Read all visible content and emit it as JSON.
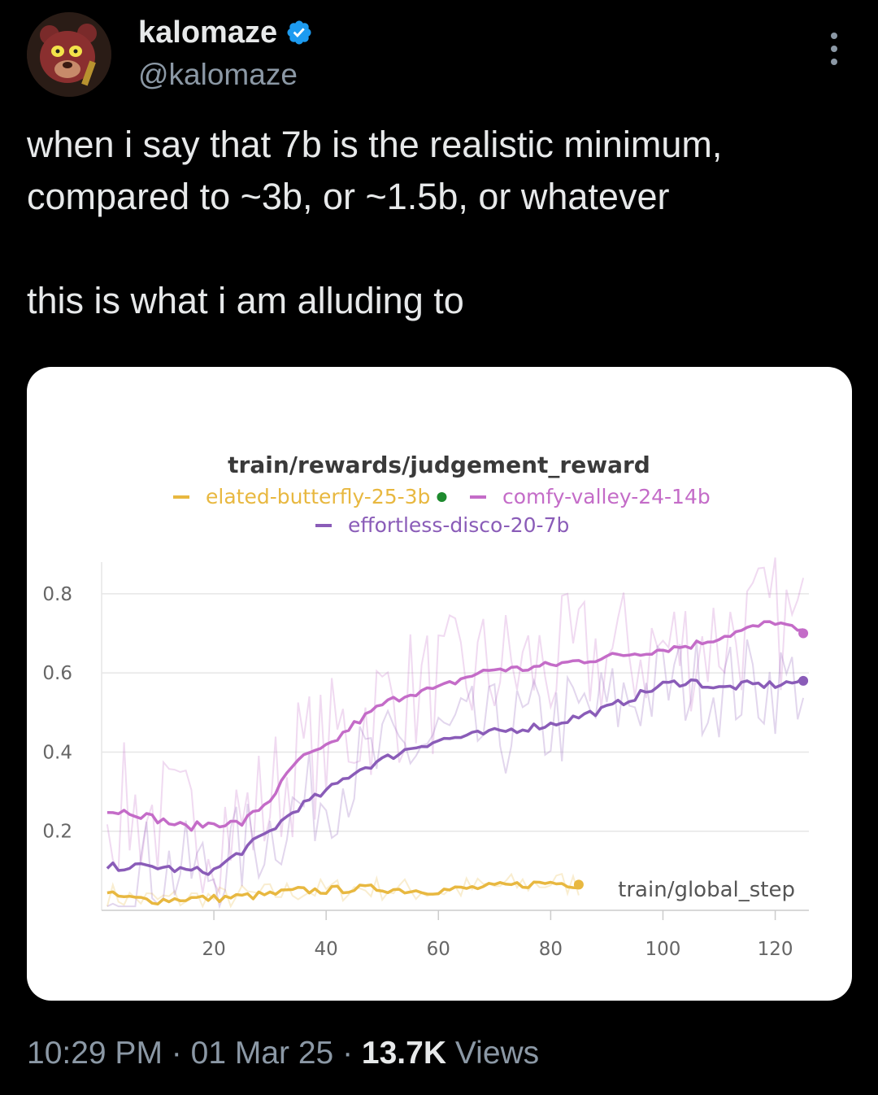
{
  "author": {
    "display_name": "kalomaze",
    "handle": "@kalomaze",
    "verified": true,
    "avatar_icon": "bear-avatar-icon"
  },
  "tweet": {
    "line1": "when i say that 7b is the realistic minimum,",
    "line2": "compared to ~3b, or ~1.5b, or whatever",
    "line3": "this is what i am alluding to"
  },
  "meta": {
    "time": "10:29 PM",
    "separator": "·",
    "date": "01 Mar 25",
    "views_count": "13.7K",
    "views_label": "Views"
  },
  "chart_data": {
    "type": "line",
    "title": "train/rewards/judgement_reward",
    "xlabel": "train/global_step",
    "ylabel": "",
    "xlim": [
      0,
      126
    ],
    "ylim": [
      0,
      0.88
    ],
    "x_ticks": [
      20,
      40,
      60,
      80,
      100,
      120
    ],
    "y_ticks": [
      0.2,
      0.4,
      0.6,
      0.8
    ],
    "x_tick_labels": [
      "20",
      "40",
      "60",
      "80",
      "100",
      "120"
    ],
    "y_tick_labels": [
      "0.2",
      "0.4",
      "0.6",
      "0.8"
    ],
    "grid": true,
    "legend_position": "top",
    "series": [
      {
        "name": "elated-butterfly-25-3b",
        "color": "#e8b840",
        "x": [
          1,
          5,
          10,
          15,
          20,
          25,
          30,
          35,
          40,
          45,
          50,
          55,
          60,
          65,
          70,
          75,
          80,
          85
        ],
        "values": [
          0.04,
          0.03,
          0.025,
          0.03,
          0.03,
          0.035,
          0.04,
          0.05,
          0.05,
          0.055,
          0.055,
          0.05,
          0.05,
          0.055,
          0.06,
          0.065,
          0.07,
          0.065
        ]
      },
      {
        "name": "comfy-valley-24-14b",
        "color": "#c46cc8",
        "x": [
          1,
          5,
          10,
          15,
          20,
          25,
          30,
          35,
          40,
          45,
          50,
          55,
          60,
          65,
          70,
          75,
          80,
          85,
          90,
          95,
          100,
          105,
          110,
          115,
          120,
          125
        ],
        "values": [
          0.25,
          0.25,
          0.23,
          0.21,
          0.22,
          0.22,
          0.28,
          0.38,
          0.41,
          0.47,
          0.52,
          0.55,
          0.56,
          0.59,
          0.61,
          0.61,
          0.62,
          0.63,
          0.64,
          0.65,
          0.66,
          0.67,
          0.69,
          0.71,
          0.73,
          0.7
        ]
      },
      {
        "name": "effortless-disco-20-7b",
        "color": "#8a5cb8",
        "x": [
          1,
          5,
          10,
          15,
          20,
          25,
          30,
          35,
          40,
          45,
          50,
          55,
          60,
          65,
          70,
          75,
          80,
          85,
          90,
          95,
          100,
          105,
          110,
          115,
          120,
          125
        ],
        "values": [
          0.11,
          0.11,
          0.11,
          0.1,
          0.1,
          0.15,
          0.2,
          0.26,
          0.3,
          0.35,
          0.38,
          0.41,
          0.43,
          0.44,
          0.45,
          0.46,
          0.47,
          0.49,
          0.51,
          0.54,
          0.57,
          0.58,
          0.56,
          0.57,
          0.57,
          0.58
        ]
      }
    ]
  }
}
